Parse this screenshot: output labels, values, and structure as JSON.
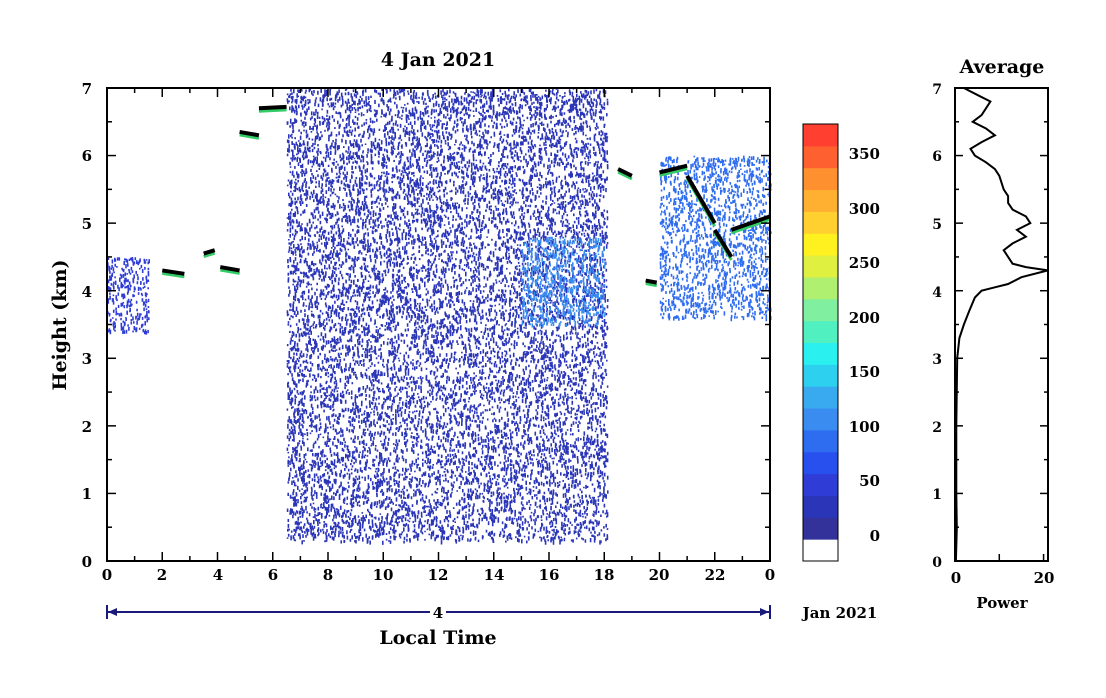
{
  "chart_data": [
    {
      "type": "heatmap",
      "title": "4 Jan 2021",
      "xlabel": "Local Time",
      "ylabel": "Height (km)",
      "x_ticks": [
        "0",
        "2",
        "4",
        "6",
        "8",
        "10",
        "12",
        "14",
        "16",
        "18",
        "20",
        "22",
        "0"
      ],
      "x_range": [
        0,
        24
      ],
      "y_ticks": [
        "0",
        "1",
        "2",
        "3",
        "4",
        "5",
        "6",
        "7"
      ],
      "ylim": [
        0,
        7
      ],
      "date_day": "4",
      "date_month_year": "Jan 2021",
      "colorbar": {
        "ticks": [
          "0",
          "50",
          "100",
          "150",
          "200",
          "250",
          "300",
          "350"
        ],
        "range": [
          -25,
          375
        ],
        "colors": [
          "#ffffff",
          "#32329a",
          "#2a35b8",
          "#2f3cd6",
          "#2850ef",
          "#2e6cf0",
          "#3a8cf0",
          "#3aaaf0",
          "#2ed0f0",
          "#2af0f0",
          "#50f0c0",
          "#80f0a0",
          "#b0f070",
          "#e0f040",
          "#fff020",
          "#ffd030",
          "#ffb030",
          "#ff9030",
          "#ff6030",
          "#ff4030"
        ]
      },
      "layers": [
        {
          "name": "noise",
          "x": [
            6.5,
            18.1
          ],
          "y": [
            0.3,
            7.0
          ],
          "value": 25
        },
        {
          "name": "left-echo",
          "x": [
            0.0,
            1.5
          ],
          "y": [
            3.4,
            4.5
          ],
          "value": 40
        },
        {
          "name": "mid-band",
          "x": [
            15.0,
            18.0
          ],
          "y": [
            3.5,
            4.8
          ],
          "value": 100
        },
        {
          "name": "evening-echo",
          "x": [
            20.0,
            24.0
          ],
          "y": [
            3.6,
            6.0
          ],
          "value": 80
        }
      ],
      "cloud_tops": [
        {
          "x": [
            2.0,
            2.8
          ],
          "y": [
            4.3,
            4.25
          ]
        },
        {
          "x": [
            3.5,
            3.9
          ],
          "y": [
            4.55,
            4.6
          ]
        },
        {
          "x": [
            4.1,
            4.8
          ],
          "y": [
            4.35,
            4.3
          ]
        },
        {
          "x": [
            4.8,
            5.5
          ],
          "y": [
            6.35,
            6.3
          ]
        },
        {
          "x": [
            5.5,
            6.5
          ],
          "y": [
            6.7,
            6.72
          ]
        },
        {
          "x": [
            18.5,
            19.0
          ],
          "y": [
            5.8,
            5.7
          ]
        },
        {
          "x": [
            19.5,
            19.9
          ],
          "y": [
            4.15,
            4.12
          ]
        },
        {
          "x": [
            20.0,
            21.0
          ],
          "y": [
            5.75,
            5.85
          ]
        },
        {
          "x": [
            21.0,
            22.0
          ],
          "y": [
            5.7,
            5.0
          ]
        },
        {
          "x": [
            22.0,
            22.6
          ],
          "y": [
            4.9,
            4.5
          ]
        },
        {
          "x": [
            22.6,
            24.0
          ],
          "y": [
            4.9,
            5.1
          ]
        }
      ]
    },
    {
      "type": "line",
      "title": "Average",
      "xlabel": "Power",
      "x_ticks": [
        "0",
        "20"
      ],
      "xlim": [
        0,
        21
      ],
      "y_ticks": [
        "0",
        "1",
        "2",
        "3",
        "4",
        "5",
        "6",
        "7"
      ],
      "ylim": [
        0,
        7
      ],
      "profile": {
        "y": [
          0.0,
          0.5,
          1.0,
          2.0,
          3.0,
          3.3,
          3.5,
          3.7,
          3.9,
          4.0,
          4.05,
          4.1,
          4.2,
          4.3,
          4.35,
          4.4,
          4.5,
          4.6,
          4.7,
          4.8,
          4.9,
          5.0,
          5.1,
          5.2,
          5.3,
          5.4,
          5.5,
          5.6,
          5.7,
          5.8,
          5.9,
          6.0,
          6.1,
          6.2,
          6.3,
          6.4,
          6.5,
          6.6,
          6.7,
          6.8,
          6.9,
          7.0
        ],
        "x": [
          0.2,
          0.4,
          0.3,
          0.3,
          0.5,
          1.0,
          2.0,
          3.2,
          4.5,
          6.0,
          9.0,
          12.0,
          15.0,
          21.0,
          16.0,
          13.0,
          12.0,
          11.0,
          13.0,
          16.0,
          14.0,
          17.0,
          16.0,
          13.0,
          12.0,
          12.0,
          11.0,
          10.5,
          10.0,
          9.0,
          7.0,
          4.5,
          3.5,
          6.0,
          9.0,
          7.0,
          4.0,
          6.0,
          7.0,
          8.0,
          5.0,
          2.0
        ]
      }
    }
  ]
}
